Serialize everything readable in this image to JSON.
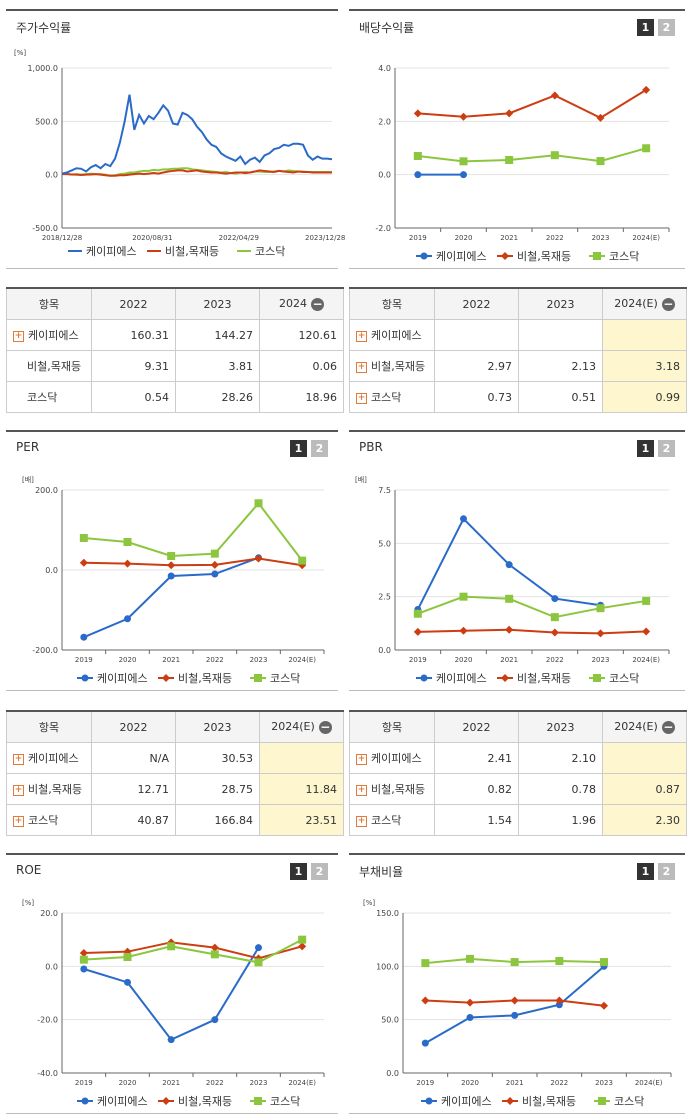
{
  "colors": {
    "blue": "#2a6ac9",
    "red": "#cc3d12",
    "green": "#8cc63f",
    "axis": "#666",
    "grid": "#e3e3e3"
  },
  "legend": [
    "케이피에스",
    "비철,목재등",
    "코스닥"
  ],
  "panels": {
    "stock": {
      "title": "주가수익률",
      "unit": "[%]"
    },
    "dividend": {
      "title": "배당수익률",
      "btn1": "1",
      "btn2": "2"
    },
    "per": {
      "title": "PER",
      "unit": "[배]",
      "btn1": "1",
      "btn2": "2"
    },
    "pbr": {
      "title": "PBR",
      "unit": "[배]",
      "btn1": "1",
      "btn2": "2"
    },
    "roe": {
      "title": "ROE",
      "unit": "[%]",
      "btn1": "1",
      "btn2": "2"
    },
    "debt": {
      "title": "부채비율",
      "unit": "[%]",
      "btn1": "1",
      "btn2": "2"
    }
  },
  "chart_data": [
    {
      "id": "stock",
      "type": "line",
      "ylim": [
        -500,
        1000
      ],
      "yticks": [
        "1,000.0",
        "500.0",
        "0.0",
        "-500.0"
      ],
      "ytickvals": [
        1000,
        500,
        0,
        -500
      ],
      "x_ticks": [
        "2018/12/28",
        "2020/08/31",
        "2022/04/29",
        "2023/12/28"
      ],
      "series": [
        {
          "name": "케이피에스",
          "values": [
            10,
            20,
            40,
            60,
            55,
            30,
            70,
            90,
            60,
            100,
            80,
            150,
            300,
            500,
            750,
            420,
            560,
            480,
            550,
            520,
            580,
            650,
            600,
            480,
            470,
            580,
            560,
            520,
            450,
            400,
            330,
            280,
            260,
            200,
            170,
            150,
            130,
            170,
            100,
            140,
            160,
            120,
            180,
            200,
            240,
            250,
            280,
            270,
            290,
            290,
            280,
            180,
            140,
            170,
            150,
            150,
            145
          ]
        },
        {
          "name": "비철,목재등",
          "values": [
            5,
            5,
            2,
            0,
            -3,
            0,
            2,
            5,
            0,
            -5,
            -10,
            -10,
            -5,
            -5,
            0,
            5,
            10,
            5,
            10,
            15,
            10,
            20,
            30,
            35,
            40,
            40,
            30,
            35,
            40,
            30,
            25,
            20,
            20,
            15,
            10,
            15,
            20,
            20,
            15,
            20,
            30,
            40,
            35,
            30,
            25,
            35,
            30,
            25,
            20,
            30,
            25,
            25,
            20,
            20,
            20,
            20,
            20
          ]
        },
        {
          "name": "코스닥",
          "values": [
            5,
            10,
            0,
            5,
            0,
            5,
            10,
            5,
            5,
            0,
            -10,
            -5,
            5,
            10,
            20,
            20,
            30,
            35,
            35,
            45,
            40,
            50,
            50,
            55,
            55,
            60,
            60,
            50,
            45,
            40,
            35,
            30,
            25,
            20,
            25,
            15,
            10,
            20,
            25,
            20,
            30,
            30,
            25,
            25,
            30,
            35,
            30,
            40,
            35,
            30,
            30,
            25,
            25,
            25,
            25,
            25,
            25
          ]
        }
      ]
    },
    {
      "id": "dividend",
      "type": "line",
      "ylim": [
        -2,
        4
      ],
      "yticks": [
        "4.0",
        "2.0",
        "0.0",
        "-2.0"
      ],
      "ytickvals": [
        4,
        2,
        0,
        -2
      ],
      "categories": [
        "2019",
        "2020",
        "2021",
        "2022",
        "2023",
        "2024(E)"
      ],
      "series": [
        {
          "name": "케이피에스",
          "values": [
            0,
            0,
            null,
            null,
            null,
            null
          ]
        },
        {
          "name": "비철,목재등",
          "values": [
            2.3,
            2.17,
            2.3,
            2.97,
            2.13,
            3.18
          ]
        },
        {
          "name": "코스닥",
          "values": [
            0.7,
            0.5,
            0.55,
            0.73,
            0.51,
            0.99
          ]
        }
      ]
    },
    {
      "id": "per",
      "type": "line",
      "ylim": [
        -200,
        200
      ],
      "yticks": [
        "200.0",
        "0.0",
        "-200.0"
      ],
      "ytickvals": [
        200,
        0,
        -200
      ],
      "categories": [
        "2019",
        "2020",
        "2021",
        "2022",
        "2023",
        "2024(E)"
      ],
      "series": [
        {
          "name": "케이피에스",
          "values": [
            -168,
            -122,
            -15,
            -10,
            30.53,
            null
          ]
        },
        {
          "name": "비철,목재등",
          "values": [
            18,
            16,
            12,
            12.71,
            28.75,
            11.84
          ]
        },
        {
          "name": "코스닥",
          "values": [
            80,
            70,
            35,
            40.87,
            166.84,
            23.51
          ]
        }
      ]
    },
    {
      "id": "pbr",
      "type": "line",
      "ylim": [
        0,
        7.5
      ],
      "yticks": [
        "7.5",
        "5.0",
        "2.5",
        "0.0"
      ],
      "ytickvals": [
        7.5,
        5,
        2.5,
        0
      ],
      "categories": [
        "2019",
        "2020",
        "2021",
        "2022",
        "2023",
        "2024(E)"
      ],
      "series": [
        {
          "name": "케이피에스",
          "values": [
            1.9,
            6.15,
            4.0,
            2.41,
            2.1,
            null
          ]
        },
        {
          "name": "비철,목재등",
          "values": [
            0.85,
            0.9,
            0.95,
            0.82,
            0.78,
            0.87
          ]
        },
        {
          "name": "코스닥",
          "values": [
            1.7,
            2.5,
            2.4,
            1.54,
            1.96,
            2.3
          ]
        }
      ]
    },
    {
      "id": "roe",
      "type": "line",
      "ylim": [
        -40,
        20
      ],
      "yticks": [
        "20.0",
        "0.0",
        "-20.0",
        "-40.0"
      ],
      "ytickvals": [
        20,
        0,
        -20,
        -40
      ],
      "categories": [
        "2019",
        "2020",
        "2021",
        "2022",
        "2023",
        "2024(E)"
      ],
      "series": [
        {
          "name": "케이피에스",
          "values": [
            -1,
            -6,
            -27.5,
            -20,
            7,
            null
          ]
        },
        {
          "name": "비철,목재등",
          "values": [
            5,
            5.5,
            9,
            7,
            3,
            7.5
          ]
        },
        {
          "name": "코스닥",
          "values": [
            2.5,
            3.5,
            7.5,
            4.5,
            1.5,
            10
          ]
        }
      ]
    },
    {
      "id": "debt",
      "type": "line",
      "ylim": [
        0,
        150
      ],
      "yticks": [
        "150.0",
        "100.0",
        "50.0",
        "0.0"
      ],
      "ytickvals": [
        150,
        100,
        50,
        0
      ],
      "categories": [
        "2019",
        "2020",
        "2021",
        "2022",
        "2023",
        "2024(E)"
      ],
      "series": [
        {
          "name": "케이피에스",
          "values": [
            28,
            52,
            54,
            64,
            100,
            null
          ]
        },
        {
          "name": "비철,목재등",
          "values": [
            68,
            66,
            68,
            68,
            63,
            null
          ]
        },
        {
          "name": "코스닥",
          "values": [
            103,
            107,
            104,
            105,
            104,
            null
          ]
        }
      ]
    }
  ],
  "tables": {
    "stock": {
      "headers": [
        "항목",
        "2022",
        "2023",
        "2024"
      ],
      "rows": [
        {
          "name": "케이피에스",
          "plus": true,
          "v": [
            "160.31",
            "144.27",
            "120.61"
          ]
        },
        {
          "name": "비철,목재등",
          "plus": false,
          "v": [
            "9.31",
            "3.81",
            "0.06"
          ]
        },
        {
          "name": "코스닥",
          "plus": false,
          "v": [
            "0.54",
            "28.26",
            "18.96"
          ]
        }
      ]
    },
    "dividend": {
      "headers": [
        "항목",
        "2022",
        "2023",
        "2024(E)"
      ],
      "rows": [
        {
          "name": "케이피에스",
          "plus": true,
          "v": [
            "",
            "",
            ""
          ]
        },
        {
          "name": "비철,목재등",
          "plus": true,
          "v": [
            "2.97",
            "2.13",
            "3.18"
          ]
        },
        {
          "name": "코스닥",
          "plus": true,
          "v": [
            "0.73",
            "0.51",
            "0.99"
          ]
        }
      ]
    },
    "per": {
      "headers": [
        "항목",
        "2022",
        "2023",
        "2024(E)"
      ],
      "rows": [
        {
          "name": "케이피에스",
          "plus": true,
          "v": [
            "N/A",
            "30.53",
            ""
          ]
        },
        {
          "name": "비철,목재등",
          "plus": true,
          "v": [
            "12.71",
            "28.75",
            "11.84"
          ]
        },
        {
          "name": "코스닥",
          "plus": true,
          "v": [
            "40.87",
            "166.84",
            "23.51"
          ]
        }
      ]
    },
    "pbr": {
      "headers": [
        "항목",
        "2022",
        "2023",
        "2024(E)"
      ],
      "rows": [
        {
          "name": "케이피에스",
          "plus": true,
          "v": [
            "2.41",
            "2.10",
            ""
          ]
        },
        {
          "name": "비철,목재등",
          "plus": true,
          "v": [
            "0.82",
            "0.78",
            "0.87"
          ]
        },
        {
          "name": "코스닥",
          "plus": true,
          "v": [
            "1.54",
            "1.96",
            "2.30"
          ]
        }
      ]
    }
  }
}
